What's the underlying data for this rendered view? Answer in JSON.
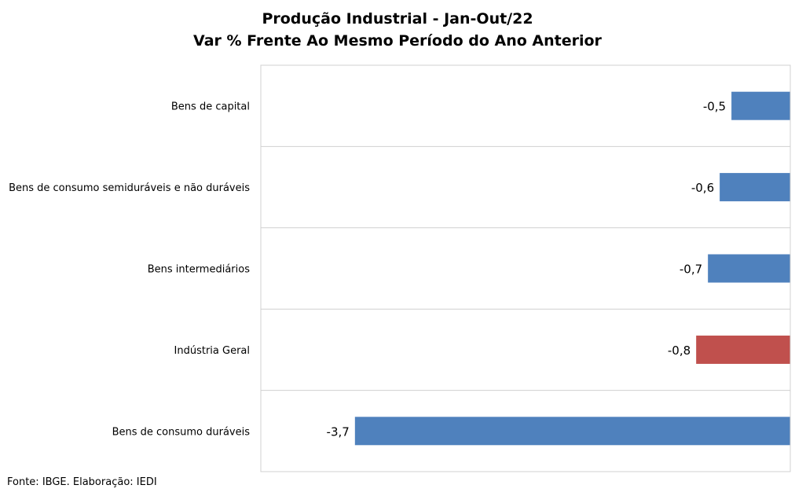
{
  "chart_data": {
    "type": "bar",
    "orientation": "horizontal",
    "title": "Produção Industrial - Jan-Out/22",
    "subtitle": "Var % Frente Ao Mesmo Período do Ano Anterior",
    "categories": [
      "Bens de capital",
      "Bens de consumo semiduráveis e não duráveis",
      "Bens intermediários",
      "Indústria Geral",
      "Bens de consumo duráveis"
    ],
    "values": [
      -0.5,
      -0.6,
      -0.7,
      -0.8,
      -3.7
    ],
    "value_labels": [
      "-0,5",
      "-0,6",
      "-0,7",
      "-0,8",
      "-3,7"
    ],
    "bar_colors": [
      "#4f81bd",
      "#4f81bd",
      "#4f81bd",
      "#c0504d",
      "#4f81bd"
    ],
    "xlim": [
      -4.5,
      0
    ],
    "grid": true,
    "legend": "none"
  },
  "footer": {
    "source": "Fonte: IBGE. Elaboração: IEDI"
  }
}
